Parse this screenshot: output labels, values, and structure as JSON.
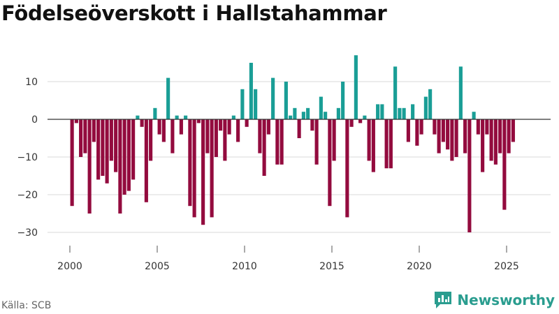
{
  "chart_data": {
    "type": "bar",
    "title": "Födelseöverskott i Hallstahammar",
    "xlabel": "",
    "ylabel": "",
    "ylim": [
      -32,
      18
    ],
    "xlim": [
      1999.5,
      2026.5
    ],
    "yticks": [
      10,
      0,
      -10,
      -20,
      -30
    ],
    "ytick_labels": [
      "10",
      "0",
      "−10",
      "−20",
      "−30"
    ],
    "xticks": [
      2000,
      2005,
      2010,
      2015,
      2020,
      2025
    ],
    "xtick_labels": [
      "2000",
      "2005",
      "2010",
      "2015",
      "2020",
      "2025"
    ],
    "period": "quarterly",
    "x_start": 2000.0,
    "x_step": 0.25,
    "values": [
      -23,
      -1,
      -10,
      -9,
      -25,
      -6,
      -16,
      -15,
      -17,
      -11,
      -14,
      -25,
      -20,
      -19,
      -16,
      1,
      -2,
      -22,
      -11,
      3,
      -4,
      -6,
      11,
      -9,
      1,
      -4,
      1,
      -23,
      -26,
      -1,
      -28,
      -9,
      -26,
      -10,
      -3,
      -11,
      -4,
      1,
      -6,
      8,
      -2,
      15,
      8,
      -9,
      -15,
      -4,
      11,
      -12,
      -12,
      10,
      1,
      3,
      -5,
      2,
      3,
      -3,
      -12,
      6,
      2,
      -23,
      -11,
      3,
      10,
      -26,
      -2,
      17,
      -1,
      1,
      -11,
      -14,
      4,
      4,
      -13,
      -13,
      14,
      3,
      3,
      -6,
      4,
      -7,
      -4,
      6,
      8,
      -4,
      -9,
      -6,
      -8,
      -11,
      -10,
      14,
      -9,
      -30,
      2,
      -4,
      -14,
      -4,
      -11,
      -12,
      -9,
      -24,
      -9,
      -6
    ],
    "colors": {
      "positive": "#1a9e96",
      "negative": "#930b3e"
    }
  },
  "source": "Källa: SCB",
  "brand": {
    "name": "Newsworthy",
    "color": "#2a9d8f"
  }
}
